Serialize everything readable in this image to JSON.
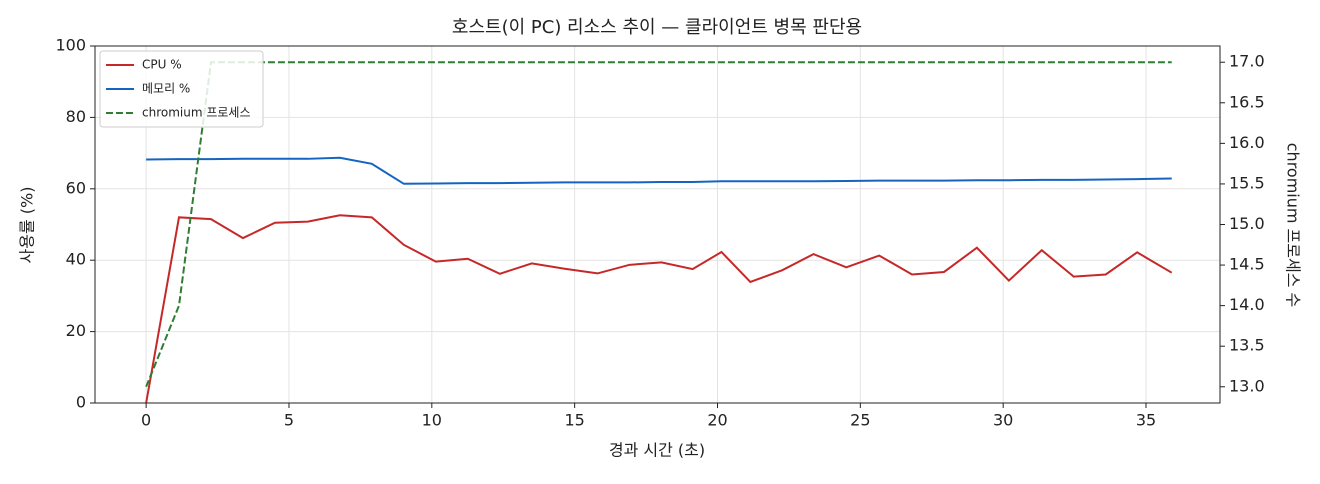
{
  "chart_data": {
    "type": "line",
    "title": "호스트(이 PC) 리소스 추이 — 클라이언트 병목 판단용",
    "xlabel": "경과 시간 (초)",
    "ylabel": "사용률 (%)",
    "y2label": "chromium 프로세스 수",
    "x": [
      0,
      1.15,
      2.27,
      3.39,
      4.51,
      5.66,
      6.78,
      7.9,
      9.02,
      10.14,
      11.26,
      12.38,
      13.5,
      14.65,
      15.8,
      16.92,
      18.04,
      19.13,
      20.14,
      21.15,
      22.27,
      23.36,
      24.51,
      25.66,
      26.81,
      27.93,
      29.08,
      30.2,
      31.35,
      32.47,
      33.59,
      34.69,
      35.9
    ],
    "series": [
      {
        "name": "CPU %",
        "color": "#c62828",
        "values": [
          0,
          52,
          51.5,
          46.2,
          50.5,
          50.8,
          52.6,
          52,
          44.3,
          39.6,
          40.4,
          36.2,
          39.1,
          37.6,
          36.3,
          38.7,
          39.4,
          37.5,
          42.3,
          33.9,
          37.2,
          41.7,
          38,
          41.3,
          36,
          36.7,
          43.5,
          34.3,
          42.8,
          35.4,
          36,
          42.2,
          36.5
        ]
      },
      {
        "name": "메모리 %",
        "color": "#1565c0",
        "values": [
          68.2,
          68.3,
          68.3,
          68.4,
          68.4,
          68.4,
          68.7,
          67,
          61.4,
          61.5,
          61.6,
          61.6,
          61.7,
          61.8,
          61.8,
          61.8,
          61.9,
          61.9,
          62.1,
          62.1,
          62.1,
          62.1,
          62.2,
          62.3,
          62.3,
          62.3,
          62.4,
          62.4,
          62.5,
          62.5,
          62.6,
          62.7,
          62.9
        ]
      },
      {
        "name": "chromium 프로세스",
        "color": "#2e7d32",
        "dashed": true,
        "axis": "y2",
        "values": [
          13,
          14,
          17,
          17,
          17,
          17,
          17,
          17,
          17,
          17,
          17,
          17,
          17,
          17,
          17,
          17,
          17,
          17,
          17,
          17,
          17,
          17,
          17,
          17,
          17,
          17,
          17,
          17,
          17,
          17,
          17,
          17,
          17
        ]
      }
    ],
    "xlim": [
      -1.79,
      37.59
    ],
    "xticks": [
      0,
      5,
      10,
      15,
      20,
      25,
      30,
      35
    ],
    "ylim": [
      0,
      100
    ],
    "yticks": [
      0,
      20,
      40,
      60,
      80,
      100
    ],
    "y2lim": [
      12.8,
      17.2
    ],
    "y2ticks": [
      {
        "value": 13,
        "label": "13.0"
      },
      {
        "value": 13.5,
        "label": "13.5"
      },
      {
        "value": 14,
        "label": "14.0"
      },
      {
        "value": 14.5,
        "label": "14.5"
      },
      {
        "value": 15,
        "label": "15.0"
      },
      {
        "value": 15.5,
        "label": "15.5"
      },
      {
        "value": 16,
        "label": "16.0"
      },
      {
        "value": 16.5,
        "label": "16.5"
      },
      {
        "value": 17,
        "label": "17.0"
      }
    ],
    "grid": true,
    "legend": "upper left"
  }
}
